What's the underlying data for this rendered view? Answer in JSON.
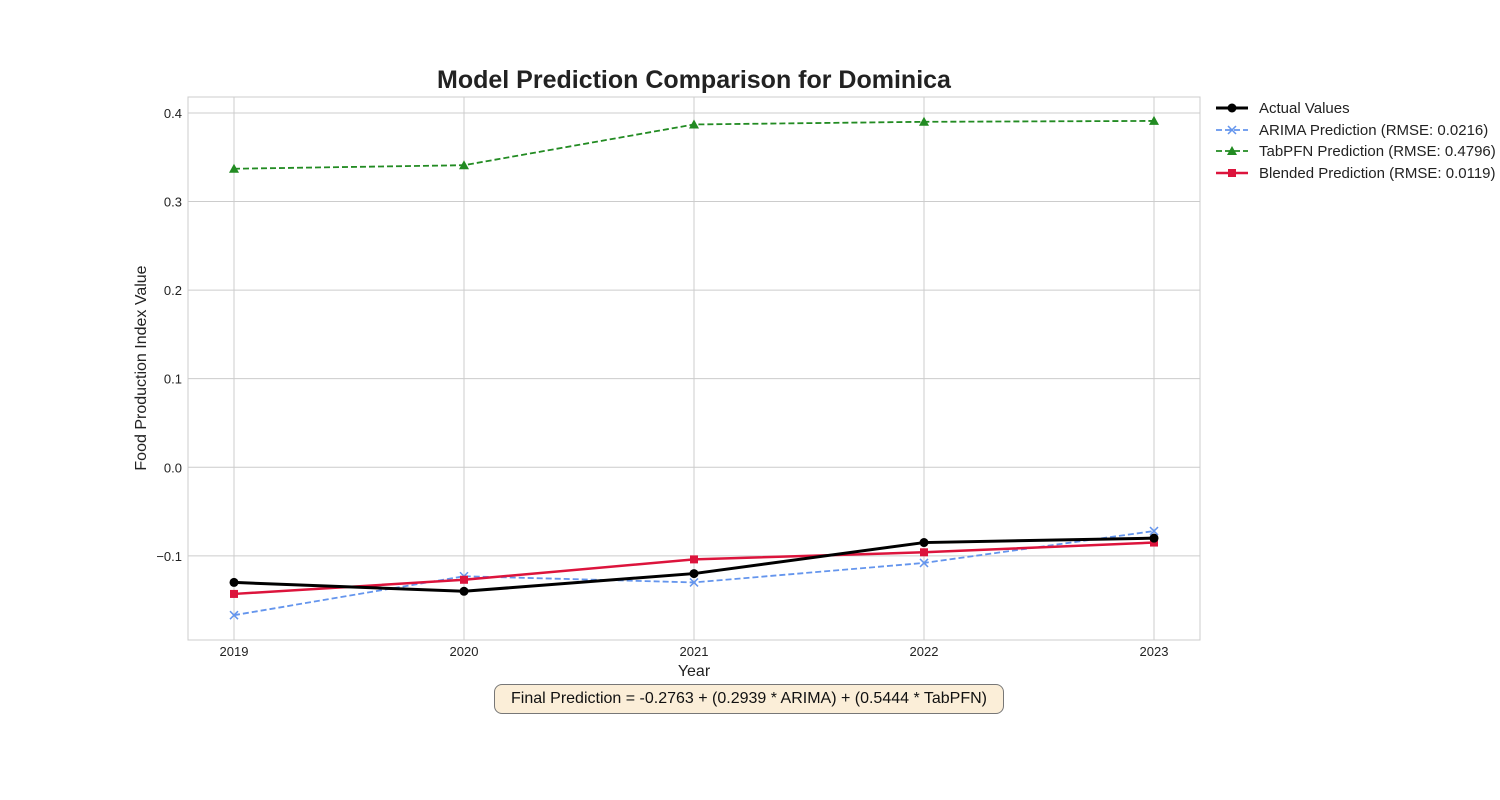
{
  "chart_data": {
    "type": "line",
    "title": "Model Prediction Comparison for Dominica",
    "xlabel": "Year",
    "ylabel": "Food Production Index Value",
    "x": [
      2019,
      2020,
      2021,
      2022,
      2023
    ],
    "xlim": [
      2018.8,
      2023.2
    ],
    "ylim": [
      -0.195,
      0.418
    ],
    "yticks": [
      -0.1,
      0.0,
      0.1,
      0.2,
      0.3,
      0.4
    ],
    "ytick_labels": [
      "−0.1",
      "0.0",
      "0.1",
      "0.2",
      "0.3",
      "0.4"
    ],
    "grid": true,
    "legend_position": "outside-top-right",
    "series": [
      {
        "name": "Actual Values",
        "values": [
          -0.13,
          -0.14,
          -0.12,
          -0.085,
          -0.08
        ],
        "color": "#000000",
        "marker": "circle",
        "dash": "solid"
      },
      {
        "name": "ARIMA Prediction (RMSE: 0.0216)",
        "values": [
          -0.167,
          -0.123,
          -0.13,
          -0.108,
          -0.072
        ],
        "color": "#6495ed",
        "marker": "x",
        "dash": "dashed"
      },
      {
        "name": "TabPFN Prediction (RMSE: 0.4796)",
        "values": [
          0.337,
          0.341,
          0.387,
          0.39,
          0.391
        ],
        "color": "#228b22",
        "marker": "triangle",
        "dash": "dashed"
      },
      {
        "name": "Blended Prediction (RMSE: 0.0119)",
        "values": [
          -0.143,
          -0.127,
          -0.104,
          -0.096,
          -0.085
        ],
        "color": "#dc143c",
        "marker": "square",
        "dash": "solid"
      }
    ],
    "annotation": "Final Prediction = -0.2763 + (0.2939 * ARIMA) + (0.5444 * TabPFN)"
  }
}
